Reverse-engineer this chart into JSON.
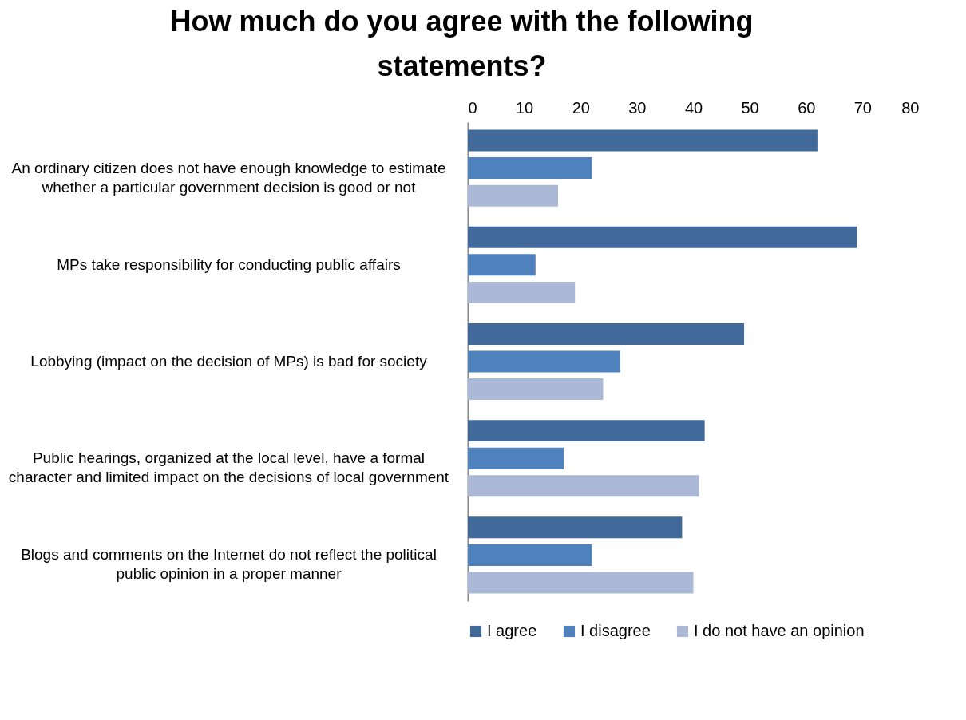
{
  "chart_data": {
    "type": "bar",
    "orientation": "horizontal",
    "title": "How much do you agree with the following statements?",
    "categories": [
      "An ordinary citizen does not have enough knowledge to estimate whether a particular government decision is good or not",
      "MPs take responsibility for conducting public affairs",
      "Lobbying (impact on the decision of MPs) is bad for society",
      "Public hearings, organized at the local level, have a formal character and limited impact on the decisions of local government",
      "Blogs and comments on the Internet do not reflect the political public opinion in a proper manner"
    ],
    "series": [
      {
        "name": "I agree",
        "color": "#416a9b",
        "values": [
          62,
          69,
          49,
          42,
          38
        ]
      },
      {
        "name": "I disagree",
        "color": "#4f81bd",
        "values": [
          22,
          12,
          27,
          17,
          22
        ]
      },
      {
        "name": "I do not have an opinion",
        "color": "#abb9d7",
        "values": [
          16,
          19,
          24,
          41,
          40
        ]
      }
    ],
    "xlim": [
      0,
      80
    ],
    "xticks": [
      0,
      10,
      20,
      30,
      40,
      50,
      60,
      70,
      80
    ],
    "grid": false,
    "legend": "bottom"
  }
}
